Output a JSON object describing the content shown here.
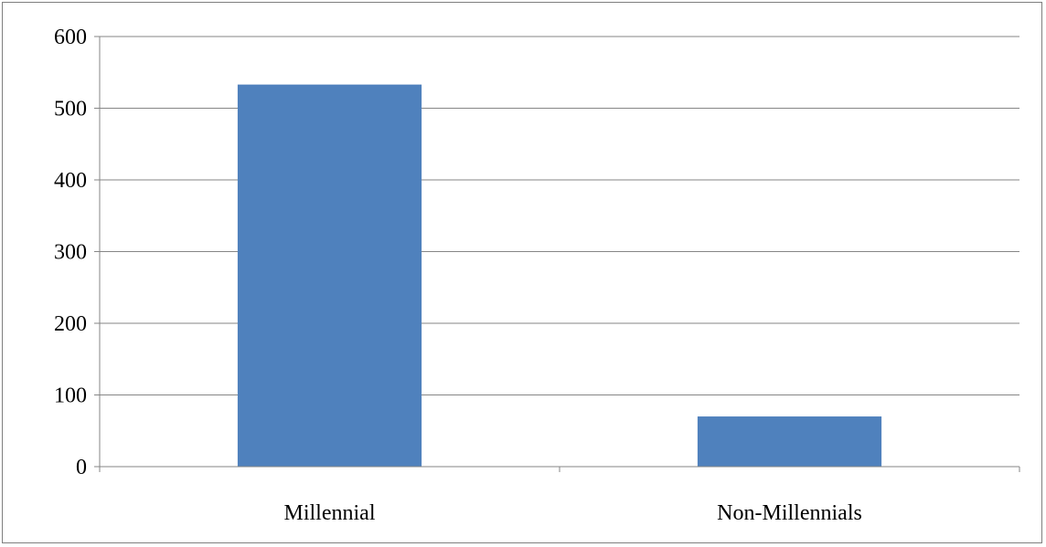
{
  "chart_data": {
    "type": "bar",
    "categories": [
      "Millennial",
      "Non-Millennials"
    ],
    "values": [
      533,
      70
    ],
    "title": "",
    "xlabel": "",
    "ylabel": "",
    "ylim": [
      0,
      600
    ],
    "yticks": [
      0,
      100,
      200,
      300,
      400,
      500,
      600
    ],
    "grid": true,
    "legend": "none",
    "colors": {
      "bar": "#4f81bd",
      "grid": "#868686",
      "axis": "#868686",
      "frame": "#7f7f7f",
      "text": "#000000"
    }
  }
}
